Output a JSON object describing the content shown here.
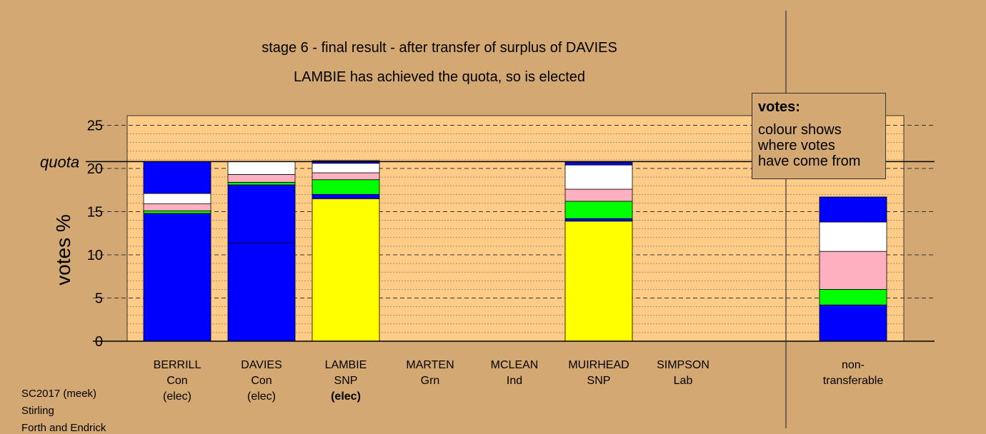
{
  "title": "stage 6 - final result - after transfer of surplus of DAVIES",
  "subtitle": "LAMBIE has achieved the quota, so is elected",
  "legend": {
    "title": "votes:",
    "lines": [
      "colour shows",
      "where votes",
      "have come from"
    ]
  },
  "footer": [
    "SC2017 (meek)",
    "Stirling",
    "Forth and Endrick"
  ],
  "chart_data": {
    "type": "bar",
    "stacked": true,
    "ylabel": "votes %",
    "ylim": [
      0,
      26
    ],
    "yticks": [
      0,
      5,
      10,
      15,
      20,
      25
    ],
    "quota": {
      "label": "quota",
      "value": 20.8
    },
    "grid": "dashed horizontal",
    "categories": [
      {
        "name": "BERRILL",
        "party": "Con",
        "status": "(elec)"
      },
      {
        "name": "DAVIES",
        "party": "Con",
        "status": "(elec)"
      },
      {
        "name": "LAMBIE",
        "party": "SNP",
        "status": "(elec)"
      },
      {
        "name": "MARTEN",
        "party": "Grn",
        "status": ""
      },
      {
        "name": "MCLEAN",
        "party": "Ind",
        "status": ""
      },
      {
        "name": "MUIRHEAD",
        "party": "SNP",
        "status": ""
      },
      {
        "name": "SIMPSON",
        "party": "Lab",
        "status": ""
      },
      {
        "name": "non-\ntransferable",
        "party": "",
        "status": ""
      }
    ],
    "stacks": [
      [
        {
          "color": "#0000ff",
          "value": 14.8
        },
        {
          "color": "#00ff00",
          "value": 0.3
        },
        {
          "color": "#ffb0c0",
          "value": 0.8
        },
        {
          "color": "#ffffff",
          "value": 1.2
        },
        {
          "color": "#0000ff",
          "value": 3.7
        }
      ],
      [
        {
          "color": "#0000ff",
          "value": 11.4
        },
        {
          "color": "#0000ff",
          "value": 6.7
        },
        {
          "color": "#00ff00",
          "value": 0.3
        },
        {
          "color": "#ffb0c0",
          "value": 0.9
        },
        {
          "color": "#ffffff",
          "value": 1.5
        }
      ],
      [
        {
          "color": "#ffff00",
          "value": 16.5
        },
        {
          "color": "#0000ff",
          "value": 0.5
        },
        {
          "color": "#00ff00",
          "value": 1.7
        },
        {
          "color": "#ffb0c0",
          "value": 0.8
        },
        {
          "color": "#ffffff",
          "value": 1.1
        },
        {
          "color": "#0000ff",
          "value": 0.3
        }
      ],
      [],
      [],
      [
        {
          "color": "#ffff00",
          "value": 13.9
        },
        {
          "color": "#0000ff",
          "value": 0.3
        },
        {
          "color": "#00ff00",
          "value": 2.0
        },
        {
          "color": "#ffb0c0",
          "value": 1.4
        },
        {
          "color": "#ffffff",
          "value": 2.8
        },
        {
          "color": "#0000ff",
          "value": 0.3
        }
      ],
      [],
      [
        {
          "color": "#0000ff",
          "value": 4.2
        },
        {
          "color": "#00ff00",
          "value": 1.8
        },
        {
          "color": "#ffb0c0",
          "value": 4.4
        },
        {
          "color": "#ffffff",
          "value": 3.4
        },
        {
          "color": "#0000ff",
          "value": 2.9
        }
      ]
    ]
  }
}
